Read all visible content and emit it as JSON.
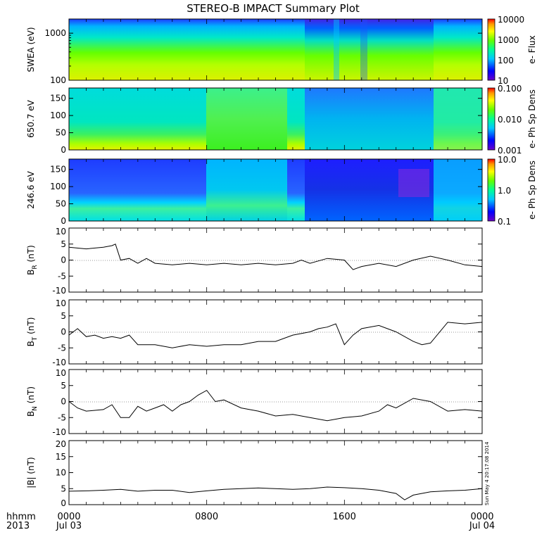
{
  "title": "STEREO-B IMPACT Summary Plot",
  "footer": {
    "left_label_1": "hhmm",
    "left_label_2": "2013"
  },
  "timestamp": "Sun May  4 20:17:08 2014",
  "colors": {
    "line": "#000000",
    "background": "#ffffff"
  },
  "chart_data": [
    {
      "type": "heatmap",
      "id": "swea",
      "ylabel": "SWEA (eV)",
      "yscale": "log",
      "ylim": [
        100,
        2000
      ],
      "yticks": [
        {
          "v": 100,
          "label": "100"
        },
        {
          "v": 1000,
          "label": "1000"
        }
      ],
      "colorbar": {
        "label": "e- Flux",
        "scale": "log",
        "range": [
          10,
          10000
        ],
        "ticks": [
          "10000",
          "1000",
          "100",
          "10"
        ]
      }
    },
    {
      "type": "heatmap",
      "id": "pad650",
      "ylabel": "650.7 eV",
      "yscale": "linear",
      "ylim": [
        0,
        180
      ],
      "yticks": [
        {
          "v": 0,
          "label": "0"
        },
        {
          "v": 50,
          "label": "50"
        },
        {
          "v": 100,
          "label": "100"
        },
        {
          "v": 150,
          "label": "150"
        }
      ],
      "colorbar": {
        "label": "e- Ph Sp Dens",
        "scale": "log",
        "range": [
          0.001,
          0.1
        ],
        "ticks": [
          "0.100",
          "0.010",
          "0.001"
        ]
      }
    },
    {
      "type": "heatmap",
      "id": "pad246",
      "ylabel": "246.6 eV",
      "yscale": "linear",
      "ylim": [
        0,
        180
      ],
      "yticks": [
        {
          "v": 0,
          "label": "0"
        },
        {
          "v": 50,
          "label": "50"
        },
        {
          "v": 100,
          "label": "100"
        },
        {
          "v": 150,
          "label": "150"
        }
      ],
      "colorbar": {
        "label": "e- Ph Sp Dens",
        "scale": "log",
        "range": [
          0.1,
          10
        ],
        "ticks": [
          "10.0",
          "1.0",
          "0.1"
        ]
      }
    },
    {
      "type": "line",
      "id": "br",
      "ylabel": "BR (nT)",
      "ylabel_main": "B",
      "ylabel_sub": "R",
      "ylabel_unit": " (nT)",
      "ylim": [
        -10,
        10
      ],
      "yticks": [
        "10",
        "5",
        "0",
        "-5",
        "-10"
      ],
      "x": [
        0,
        1,
        2,
        2.5,
        2.7,
        3,
        3.5,
        4,
        4.5,
        5,
        6,
        7,
        8,
        9,
        10,
        11,
        12,
        13,
        13.5,
        14,
        15,
        16,
        16.5,
        17,
        18,
        19,
        20,
        21,
        22,
        23,
        24
      ],
      "y": [
        4,
        3.5,
        4,
        4.5,
        5,
        0,
        0.5,
        -1,
        0.5,
        -1,
        -1.5,
        -1,
        -1.5,
        -1,
        -1.5,
        -1,
        -1.5,
        -1,
        0,
        -1,
        0.5,
        0,
        -3,
        -2,
        -1,
        -2,
        0,
        1.2,
        0,
        -1.5,
        -2
      ]
    },
    {
      "type": "line",
      "id": "bt",
      "ylabel": "BT (nT)",
      "ylabel_main": "B",
      "ylabel_sub": "T",
      "ylabel_unit": " (nT)",
      "ylim": [
        -10,
        10
      ],
      "yticks": [
        "10",
        "5",
        "0",
        "-5",
        "-10"
      ],
      "x": [
        0,
        0.5,
        1,
        1.5,
        2,
        2.5,
        3,
        3.5,
        4,
        5,
        6,
        7,
        8,
        9,
        10,
        11,
        12,
        13,
        14,
        14.5,
        15,
        15.5,
        16,
        16.5,
        17,
        18,
        19,
        20,
        20.5,
        21,
        22,
        23,
        24
      ],
      "y": [
        -1,
        1,
        -1.5,
        -1,
        -2,
        -1.5,
        -2,
        -1,
        -4,
        -4,
        -5,
        -4,
        -4.5,
        -4,
        -4,
        -3,
        -3,
        -1,
        0,
        1,
        1.5,
        2.5,
        -4,
        -1,
        1,
        2,
        0,
        -3,
        -4,
        -3.5,
        3,
        2.5,
        3
      ]
    },
    {
      "type": "line",
      "id": "bn",
      "ylabel": "BN (nT)",
      "ylabel_main": "B",
      "ylabel_sub": "N",
      "ylabel_unit": " (nT)",
      "ylim": [
        -10,
        10
      ],
      "yticks": [
        "10",
        "5",
        "0",
        "-5",
        "-10"
      ],
      "x": [
        0,
        0.5,
        1,
        2,
        2.5,
        3,
        3.5,
        4,
        4.5,
        5,
        5.5,
        6,
        6.5,
        7,
        7.5,
        8,
        8.5,
        9,
        10,
        11,
        12,
        13,
        14,
        15,
        16,
        17,
        18,
        18.5,
        19,
        20,
        21,
        22,
        23,
        24
      ],
      "y": [
        0,
        -2,
        -3,
        -2.5,
        -1,
        -5,
        -5,
        -1.5,
        -3,
        -2,
        -1,
        -3,
        -1,
        0,
        2,
        3.5,
        0,
        0.5,
        -2,
        -3,
        -4.5,
        -4,
        -5,
        -6,
        -5,
        -4.5,
        -3,
        -1,
        -2,
        1,
        0,
        -3,
        -2.5,
        -3
      ]
    },
    {
      "type": "line",
      "id": "bmag",
      "ylabel": "|B| (nT)",
      "ylim": [
        0,
        20
      ],
      "yticks": [
        "20",
        "15",
        "10",
        "5",
        "0"
      ],
      "x": [
        0,
        1,
        2,
        3,
        4,
        5,
        6,
        7,
        8,
        9,
        10,
        11,
        12,
        13,
        14,
        15,
        16,
        17,
        18,
        19,
        19.5,
        20,
        21,
        22,
        23,
        24
      ],
      "y": [
        4.2,
        4.3,
        4.5,
        4.8,
        4.2,
        4.5,
        4.5,
        3.8,
        4.3,
        4.8,
        5,
        5.2,
        5,
        4.8,
        5,
        5.5,
        5.3,
        5,
        4.5,
        3.5,
        1.5,
        3,
        4,
        4.3,
        4.5,
        5
      ]
    }
  ],
  "xaxis": {
    "range_hours": [
      0,
      24
    ],
    "ticks": [
      {
        "hour": 0,
        "label": "0000",
        "date": "Jul 03"
      },
      {
        "hour": 8,
        "label": "0800",
        "date": ""
      },
      {
        "hour": 16,
        "label": "1600",
        "date": ""
      },
      {
        "hour": 24,
        "label": "0000",
        "date": "Jul 04"
      }
    ]
  }
}
